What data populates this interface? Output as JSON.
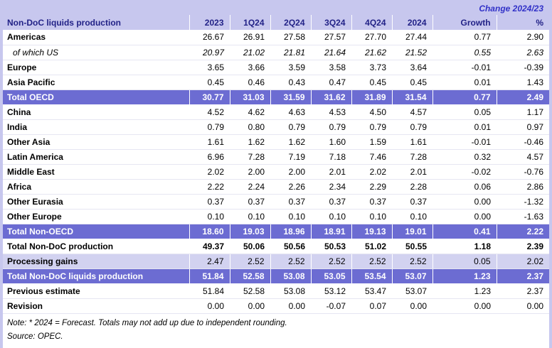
{
  "table": {
    "title": "Non-DoC liquids production",
    "change_header": "Change 2024/23",
    "columns": [
      "2023",
      "1Q24",
      "2Q24",
      "3Q24",
      "4Q24",
      "2024",
      "Growth",
      "%"
    ],
    "rows": [
      {
        "label": "Americas",
        "style": "normal",
        "values": [
          "26.67",
          "26.91",
          "27.58",
          "27.57",
          "27.70",
          "27.44",
          "0.77",
          "2.90"
        ]
      },
      {
        "label": "of which US",
        "style": "italic",
        "values": [
          "20.97",
          "21.02",
          "21.81",
          "21.64",
          "21.62",
          "21.52",
          "0.55",
          "2.63"
        ]
      },
      {
        "label": "Europe",
        "style": "normal",
        "values": [
          "3.65",
          "3.66",
          "3.59",
          "3.58",
          "3.73",
          "3.64",
          "-0.01",
          "-0.39"
        ]
      },
      {
        "label": "Asia Pacific",
        "style": "normal",
        "values": [
          "0.45",
          "0.46",
          "0.43",
          "0.47",
          "0.45",
          "0.45",
          "0.01",
          "1.43"
        ]
      },
      {
        "label": "Total OECD",
        "style": "total",
        "values": [
          "30.77",
          "31.03",
          "31.59",
          "31.62",
          "31.89",
          "31.54",
          "0.77",
          "2.49"
        ]
      },
      {
        "label": "China",
        "style": "normal",
        "values": [
          "4.52",
          "4.62",
          "4.63",
          "4.53",
          "4.50",
          "4.57",
          "0.05",
          "1.17"
        ]
      },
      {
        "label": "India",
        "style": "normal",
        "values": [
          "0.79",
          "0.80",
          "0.79",
          "0.79",
          "0.79",
          "0.79",
          "0.01",
          "0.97"
        ]
      },
      {
        "label": "Other Asia",
        "style": "normal",
        "values": [
          "1.61",
          "1.62",
          "1.62",
          "1.60",
          "1.59",
          "1.61",
          "-0.01",
          "-0.46"
        ]
      },
      {
        "label": "Latin America",
        "style": "normal",
        "values": [
          "6.96",
          "7.28",
          "7.19",
          "7.18",
          "7.46",
          "7.28",
          "0.32",
          "4.57"
        ]
      },
      {
        "label": "Middle East",
        "style": "normal",
        "values": [
          "2.02",
          "2.00",
          "2.00",
          "2.01",
          "2.02",
          "2.01",
          "-0.02",
          "-0.76"
        ]
      },
      {
        "label": "Africa",
        "style": "normal",
        "values": [
          "2.22",
          "2.24",
          "2.26",
          "2.34",
          "2.29",
          "2.28",
          "0.06",
          "2.86"
        ]
      },
      {
        "label": "Other Eurasia",
        "style": "normal",
        "values": [
          "0.37",
          "0.37",
          "0.37",
          "0.37",
          "0.37",
          "0.37",
          "0.00",
          "-1.32"
        ]
      },
      {
        "label": "Other Europe",
        "style": "normal",
        "values": [
          "0.10",
          "0.10",
          "0.10",
          "0.10",
          "0.10",
          "0.10",
          "0.00",
          "-1.63"
        ]
      },
      {
        "label": "Total Non-OECD",
        "style": "total",
        "values": [
          "18.60",
          "19.03",
          "18.96",
          "18.91",
          "19.13",
          "19.01",
          "0.41",
          "2.22"
        ]
      },
      {
        "label": "Total Non-DoC production",
        "style": "bold",
        "values": [
          "49.37",
          "50.06",
          "50.56",
          "50.53",
          "51.02",
          "50.55",
          "1.18",
          "2.39"
        ]
      },
      {
        "label": "Processing gains",
        "style": "shaded",
        "values": [
          "2.47",
          "2.52",
          "2.52",
          "2.52",
          "2.52",
          "2.52",
          "0.05",
          "2.02"
        ]
      },
      {
        "label": "Total Non-DoC liquids production",
        "style": "total",
        "values": [
          "51.84",
          "52.58",
          "53.08",
          "53.05",
          "53.54",
          "53.07",
          "1.23",
          "2.37"
        ]
      },
      {
        "label": "Previous estimate",
        "style": "normal",
        "values": [
          "51.84",
          "52.58",
          "53.08",
          "53.12",
          "53.47",
          "53.07",
          "1.23",
          "2.37"
        ]
      },
      {
        "label": "Revision",
        "style": "normal",
        "values": [
          "0.00",
          "0.00",
          "0.00",
          "-0.07",
          "0.07",
          "0.00",
          "0.00",
          "0.00"
        ]
      }
    ]
  },
  "notes": {
    "note": "Note: * 2024 = Forecast. Totals may not add up due to independent rounding.",
    "source": "Source: OPEC."
  },
  "colors": {
    "page_background": "#c7c7ee",
    "band_background": "#c7c7ee",
    "total_row_background": "#6c6cd2",
    "shaded_row_background": "#d2d2f0",
    "row_background": "#ffffff",
    "header_text": "#222287",
    "change_text": "#3232c8",
    "body_text": "#000000"
  }
}
